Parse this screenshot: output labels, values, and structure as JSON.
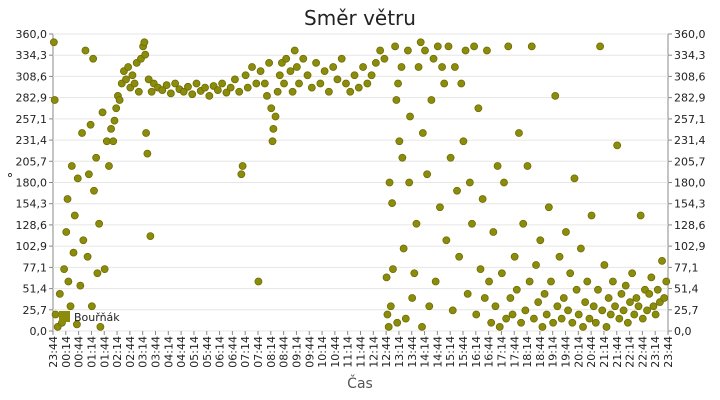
{
  "chart_data": {
    "type": "scatter",
    "title": "Směr větru",
    "x_label": "Čas",
    "y_label": "°",
    "ylim": [
      0,
      360
    ],
    "yticks": [
      {
        "value": 0,
        "label": "0,0"
      },
      {
        "value": 25.7,
        "label": "25,7"
      },
      {
        "value": 51.4,
        "label": "51,4"
      },
      {
        "value": 77.1,
        "label": "77,1"
      },
      {
        "value": 102.9,
        "label": "102,9"
      },
      {
        "value": 128.6,
        "label": "128,6"
      },
      {
        "value": 154.3,
        "label": "154,3"
      },
      {
        "value": 180,
        "label": "180,0"
      },
      {
        "value": 205.7,
        "label": "205,7"
      },
      {
        "value": 231.4,
        "label": "231,4"
      },
      {
        "value": 257.1,
        "label": "257,1"
      },
      {
        "value": 282.9,
        "label": "282,9"
      },
      {
        "value": 308.6,
        "label": "308,6"
      },
      {
        "value": 334.3,
        "label": "334,3"
      },
      {
        "value": 360,
        "label": "360,0"
      }
    ],
    "xticks": [
      "23:44",
      "00:14",
      "00:44",
      "01:14",
      "01:44",
      "02:14",
      "02:44",
      "03:14",
      "03:44",
      "04:14",
      "04:44",
      "05:14",
      "05:44",
      "06:14",
      "06:44",
      "07:14",
      "07:44",
      "08:14",
      "08:44",
      "09:14",
      "09:44",
      "10:14",
      "10:44",
      "11:14",
      "11:44",
      "12:14",
      "12:44",
      "13:14",
      "13:44",
      "14:14",
      "14:44",
      "15:14",
      "15:44",
      "16:14",
      "16:44",
      "17:14",
      "17:44",
      "18:14",
      "18:44",
      "19:14",
      "19:44",
      "20:14",
      "20:44",
      "21:14",
      "21:44",
      "22:14",
      "22:44",
      "23:14",
      "23:44"
    ],
    "grid": true,
    "legend": "lower left",
    "x": [
      "23:46",
      "23:48",
      "23:50",
      "23:55",
      "00:00",
      "00:05",
      "00:10",
      "00:15",
      "00:18",
      "00:20",
      "00:25",
      "00:28",
      "00:32",
      "00:35",
      "00:40",
      "00:42",
      "00:48",
      "00:52",
      "00:55",
      "01:00",
      "01:05",
      "01:08",
      "01:12",
      "01:15",
      "01:18",
      "01:20",
      "01:25",
      "01:28",
      "01:32",
      "01:35",
      "01:40",
      "01:45",
      "01:50",
      "01:55",
      "02:00",
      "02:05",
      "02:08",
      "02:12",
      "02:16",
      "02:20",
      "02:25",
      "02:30",
      "02:35",
      "02:40",
      "02:45",
      "02:50",
      "02:55",
      "03:00",
      "03:05",
      "03:10",
      "03:15",
      "03:18",
      "03:20",
      "03:22",
      "03:25",
      "03:28",
      "03:32",
      "03:35",
      "03:40",
      "03:50",
      "04:00",
      "04:10",
      "04:20",
      "04:30",
      "04:40",
      "04:50",
      "05:00",
      "05:10",
      "05:20",
      "05:30",
      "05:40",
      "05:50",
      "06:00",
      "06:10",
      "06:20",
      "06:30",
      "06:40",
      "06:50",
      "07:00",
      "07:05",
      "07:08",
      "07:15",
      "07:20",
      "07:30",
      "07:40",
      "07:45",
      "07:50",
      "08:00",
      "08:05",
      "08:10",
      "08:15",
      "08:18",
      "08:20",
      "08:25",
      "08:30",
      "08:35",
      "08:40",
      "08:45",
      "08:50",
      "09:00",
      "09:05",
      "09:10",
      "09:15",
      "09:20",
      "09:30",
      "09:40",
      "09:50",
      "10:00",
      "10:10",
      "10:20",
      "10:30",
      "10:40",
      "10:50",
      "11:00",
      "11:10",
      "11:20",
      "11:30",
      "11:40",
      "11:50",
      "12:00",
      "12:10",
      "12:20",
      "12:30",
      "12:40",
      "12:45",
      "12:47",
      "12:50",
      "12:52",
      "12:55",
      "12:58",
      "13:00",
      "13:05",
      "13:08",
      "13:10",
      "13:12",
      "13:15",
      "13:20",
      "13:22",
      "13:25",
      "13:30",
      "13:35",
      "13:38",
      "13:40",
      "13:45",
      "13:50",
      "13:55",
      "14:00",
      "14:05",
      "14:08",
      "14:10",
      "14:15",
      "14:20",
      "14:25",
      "14:30",
      "14:35",
      "14:40",
      "14:45",
      "14:50",
      "14:55",
      "15:00",
      "15:05",
      "15:10",
      "15:15",
      "15:20",
      "15:25",
      "15:30",
      "15:35",
      "15:40",
      "15:45",
      "15:50",
      "15:55",
      "16:00",
      "16:05",
      "16:10",
      "16:15",
      "16:20",
      "16:25",
      "16:30",
      "16:35",
      "16:40",
      "16:45",
      "16:50",
      "16:55",
      "17:00",
      "17:05",
      "17:10",
      "17:15",
      "17:20",
      "17:25",
      "17:30",
      "17:35",
      "17:40",
      "17:45",
      "17:50",
      "17:55",
      "18:00",
      "18:05",
      "18:10",
      "18:15",
      "18:20",
      "18:25",
      "18:30",
      "18:35",
      "18:40",
      "18:45",
      "18:50",
      "18:55",
      "19:00",
      "19:05",
      "19:10",
      "19:15",
      "19:20",
      "19:25",
      "19:30",
      "19:35",
      "19:40",
      "19:45",
      "19:50",
      "19:55",
      "20:00",
      "20:05",
      "20:10",
      "20:15",
      "20:20",
      "20:25",
      "20:30",
      "20:35",
      "20:40",
      "20:45",
      "20:50",
      "20:55",
      "21:00",
      "21:05",
      "21:10",
      "21:15",
      "21:20",
      "21:25",
      "21:30",
      "21:35",
      "21:40",
      "21:45",
      "21:50",
      "21:55",
      "22:00",
      "22:05",
      "22:10",
      "22:15",
      "22:20",
      "22:25",
      "22:30",
      "22:35",
      "22:40",
      "22:45",
      "22:50",
      "22:55",
      "23:00",
      "23:05",
      "23:10",
      "23:15",
      "23:20",
      "23:25",
      "23:30",
      "23:35",
      "23:40"
    ],
    "series": [
      {
        "name": "Bouřňák",
        "color": "#8c8c0c",
        "values": [
          350,
          280,
          20,
          5,
          45,
          10,
          75,
          120,
          160,
          60,
          30,
          200,
          95,
          140,
          8,
          185,
          55,
          240,
          110,
          340,
          90,
          190,
          250,
          30,
          330,
          170,
          210,
          70,
          130,
          5,
          265,
          75,
          230,
          200,
          245,
          230,
          255,
          270,
          285,
          280,
          300,
          315,
          305,
          320,
          295,
          310,
          300,
          325,
          290,
          330,
          345,
          350,
          335,
          240,
          215,
          305,
          115,
          290,
          300,
          295,
          292,
          298,
          288,
          300,
          293,
          290,
          296,
          287,
          300,
          291,
          295,
          285,
          297,
          292,
          300,
          289,
          295,
          305,
          290,
          190,
          200,
          310,
          295,
          320,
          300,
          60,
          315,
          300,
          285,
          325,
          270,
          230,
          245,
          260,
          290,
          310,
          325,
          300,
          330,
          315,
          290,
          340,
          320,
          300,
          330,
          310,
          295,
          325,
          300,
          315,
          290,
          320,
          305,
          330,
          300,
          290,
          310,
          295,
          320,
          300,
          310,
          325,
          340,
          330,
          65,
          20,
          5,
          180,
          30,
          155,
          75,
          345,
          280,
          10,
          300,
          230,
          320,
          210,
          100,
          15,
          340,
          180,
          260,
          40,
          70,
          130,
          320,
          350,
          5,
          240,
          340,
          190,
          30,
          280,
          330,
          60,
          345,
          150,
          320,
          300,
          110,
          345,
          210,
          25,
          320,
          170,
          90,
          300,
          230,
          340,
          45,
          180,
          130,
          345,
          20,
          270,
          75,
          160,
          40,
          340,
          60,
          10,
          120,
          30,
          200,
          5,
          70,
          180,
          15,
          345,
          40,
          20,
          90,
          50,
          240,
          10,
          130,
          25,
          200,
          60,
          345,
          15,
          80,
          35,
          110,
          5,
          45,
          20,
          150,
          60,
          10,
          285,
          30,
          90,
          15,
          40,
          120,
          25,
          70,
          10,
          185,
          50,
          20,
          100,
          5,
          35,
          60,
          15,
          140,
          30,
          10,
          50,
          345,
          25,
          80,
          5,
          40,
          20,
          60,
          30,
          225,
          15,
          45,
          25,
          55,
          10,
          35,
          70,
          20,
          40,
          30,
          140,
          15,
          50,
          25,
          45,
          65,
          30,
          20,
          50,
          35,
          85,
          40,
          60
        ]
      }
    ]
  }
}
